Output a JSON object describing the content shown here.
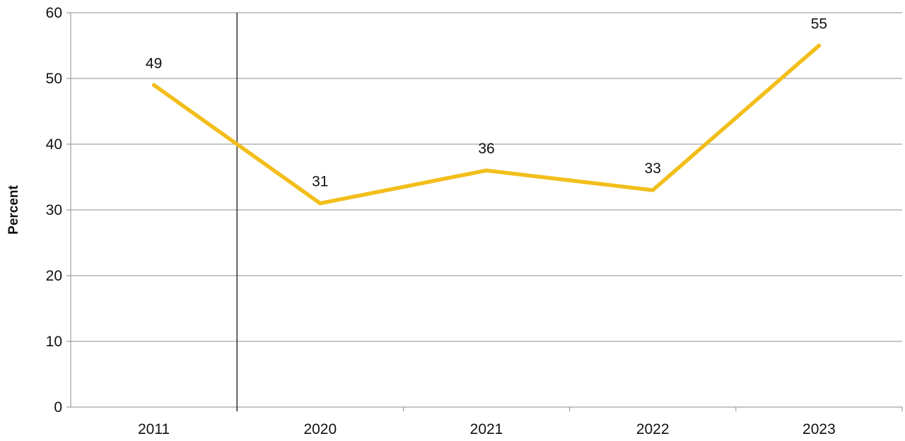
{
  "chart_data": {
    "type": "line",
    "title": "",
    "xlabel": "",
    "ylabel": "Percent",
    "categories": [
      "2011",
      "2020",
      "2021",
      "2022",
      "2023"
    ],
    "series": [
      {
        "values": [
          49,
          31,
          36,
          33,
          55
        ],
        "color": "#F2BE1B"
      }
    ],
    "data_labels": [
      "49",
      "31",
      "36",
      "33",
      "55"
    ],
    "ylim": [
      0,
      60
    ],
    "yticks": [
      0,
      10,
      20,
      30,
      40,
      50,
      60
    ],
    "grid": true,
    "legend": "none",
    "break_after_category": "2011"
  }
}
